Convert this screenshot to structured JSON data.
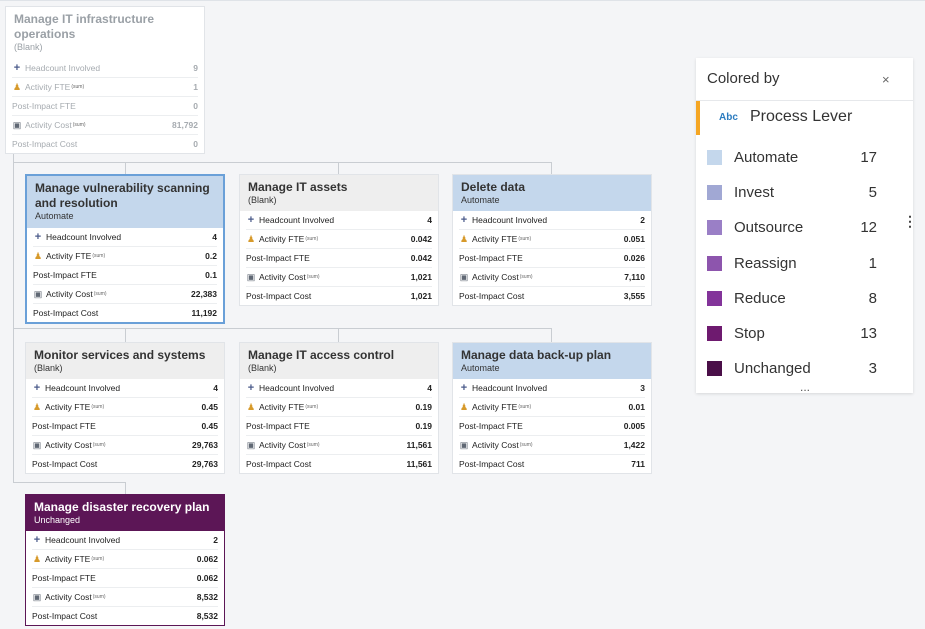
{
  "cards": [
    {
      "title": "Manage IT infrastructure operations",
      "subtitle": "(Blank)",
      "rows": [
        {
          "label": "Headcount Involved",
          "sum": "",
          "value": "9"
        },
        {
          "label": "Activity FTE",
          "sum": "(sum)",
          "value": "1"
        },
        {
          "label": "Post-Impact FTE",
          "sum": "",
          "value": "0"
        },
        {
          "label": "Activity Cost",
          "sum": "(sum)",
          "value": "81,792"
        },
        {
          "label": "Post-Impact Cost",
          "sum": "",
          "value": "0"
        }
      ]
    },
    {
      "title": "Manage vulnerability scanning and resolution",
      "subtitle": "Automate",
      "rows": [
        {
          "label": "Headcount Involved",
          "sum": "",
          "value": "4"
        },
        {
          "label": "Activity FTE",
          "sum": "(sum)",
          "value": "0.2"
        },
        {
          "label": "Post-Impact FTE",
          "sum": "",
          "value": "0.1"
        },
        {
          "label": "Activity Cost",
          "sum": "(sum)",
          "value": "22,383"
        },
        {
          "label": "Post-Impact Cost",
          "sum": "",
          "value": "11,192"
        }
      ]
    },
    {
      "title": "Manage IT assets",
      "subtitle": "(Blank)",
      "rows": [
        {
          "label": "Headcount Involved",
          "sum": "",
          "value": "4"
        },
        {
          "label": "Activity FTE",
          "sum": "(sum)",
          "value": "0.042"
        },
        {
          "label": "Post-Impact FTE",
          "sum": "",
          "value": "0.042"
        },
        {
          "label": "Activity Cost",
          "sum": "(sum)",
          "value": "1,021"
        },
        {
          "label": "Post-Impact Cost",
          "sum": "",
          "value": "1,021"
        }
      ]
    },
    {
      "title": "Delete data",
      "subtitle": "Automate",
      "rows": [
        {
          "label": "Headcount Involved",
          "sum": "",
          "value": "2"
        },
        {
          "label": "Activity FTE",
          "sum": "(sum)",
          "value": "0.051"
        },
        {
          "label": "Post-Impact FTE",
          "sum": "",
          "value": "0.026"
        },
        {
          "label": "Activity Cost",
          "sum": "(sum)",
          "value": "7,110"
        },
        {
          "label": "Post-Impact Cost",
          "sum": "",
          "value": "3,555"
        }
      ]
    },
    {
      "title": "Monitor services and systems",
      "subtitle": "(Blank)",
      "rows": [
        {
          "label": "Headcount Involved",
          "sum": "",
          "value": "4"
        },
        {
          "label": "Activity FTE",
          "sum": "(sum)",
          "value": "0.45"
        },
        {
          "label": "Post-Impact FTE",
          "sum": "",
          "value": "0.45"
        },
        {
          "label": "Activity Cost",
          "sum": "(sum)",
          "value": "29,763"
        },
        {
          "label": "Post-Impact Cost",
          "sum": "",
          "value": "29,763"
        }
      ]
    },
    {
      "title": "Manage IT access control",
      "subtitle": "(Blank)",
      "rows": [
        {
          "label": "Headcount Involved",
          "sum": "",
          "value": "4"
        },
        {
          "label": "Activity FTE",
          "sum": "(sum)",
          "value": "0.19"
        },
        {
          "label": "Post-Impact FTE",
          "sum": "",
          "value": "0.19"
        },
        {
          "label": "Activity Cost",
          "sum": "(sum)",
          "value": "11,561"
        },
        {
          "label": "Post-Impact Cost",
          "sum": "",
          "value": "11,561"
        }
      ]
    },
    {
      "title": "Manage data back-up plan",
      "subtitle": "Automate",
      "rows": [
        {
          "label": "Headcount Involved",
          "sum": "",
          "value": "3"
        },
        {
          "label": "Activity FTE",
          "sum": "(sum)",
          "value": "0.01"
        },
        {
          "label": "Post-Impact FTE",
          "sum": "",
          "value": "0.005"
        },
        {
          "label": "Activity Cost",
          "sum": "(sum)",
          "value": "1,422"
        },
        {
          "label": "Post-Impact Cost",
          "sum": "",
          "value": "711"
        }
      ]
    },
    {
      "title": "Manage disaster recovery plan",
      "subtitle": "Unchanged",
      "rows": [
        {
          "label": "Headcount Involved",
          "sum": "",
          "value": "2"
        },
        {
          "label": "Activity FTE",
          "sum": "(sum)",
          "value": "0.062"
        },
        {
          "label": "Post-Impact FTE",
          "sum": "",
          "value": "0.062"
        },
        {
          "label": "Activity Cost",
          "sum": "(sum)",
          "value": "8,532"
        },
        {
          "label": "Post-Impact Cost",
          "sum": "",
          "value": "8,532"
        }
      ]
    }
  ],
  "icons": {
    "headcount": "plus-icon",
    "fte": "person-icon",
    "cost": "bank-icon"
  },
  "legend": {
    "title": "Colored by",
    "close": "×",
    "field_type": "Abc",
    "field_name": "Process Lever",
    "more": "...",
    "items": [
      {
        "name": "Automate",
        "count": "17",
        "color": "#c4d7ec"
      },
      {
        "name": "Invest",
        "count": "5",
        "color": "#a1a8d4"
      },
      {
        "name": "Outsource",
        "count": "12",
        "color": "#9a7fc6"
      },
      {
        "name": "Reassign",
        "count": "1",
        "color": "#8d55ad"
      },
      {
        "name": "Reduce",
        "count": "8",
        "color": "#83349a"
      },
      {
        "name": "Stop",
        "count": "13",
        "color": "#6e1a6f"
      },
      {
        "name": "Unchanged",
        "count": "3",
        "color": "#4a0f48"
      }
    ]
  },
  "side_menu": "⋮"
}
